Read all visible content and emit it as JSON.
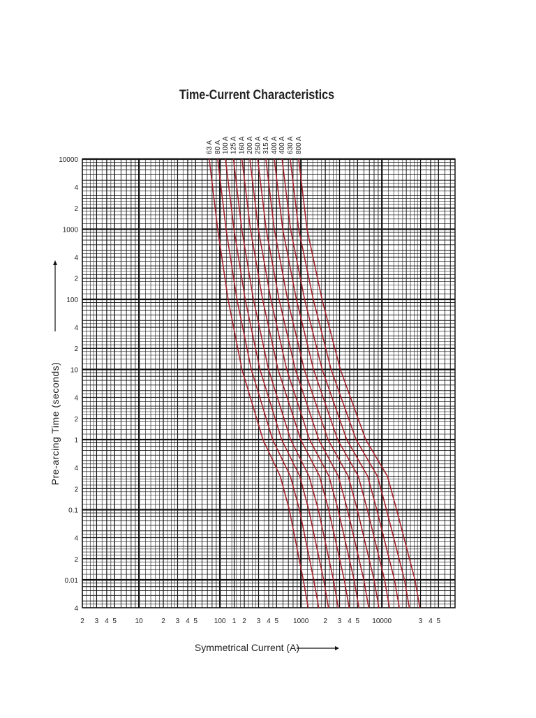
{
  "chart_data": {
    "type": "line",
    "title": "Time-Current Characteristics",
    "x_label": "Symmetrical Current (A)",
    "y_label": "Pre-arcing Time (seconds)",
    "x_log": true,
    "y_log": true,
    "grid": true,
    "xlim": [
      2,
      80000
    ],
    "ylim": [
      0.004,
      10000
    ],
    "xticks": [
      2,
      3,
      4,
      5,
      10,
      {
        "value": 20,
        "label": "2"
      },
      {
        "value": 30,
        "label": "3"
      },
      {
        "value": 40,
        "label": "4"
      },
      {
        "value": 50,
        "label": "5"
      },
      100,
      {
        "value": 150,
        "label": "1"
      },
      {
        "value": 200,
        "label": "2"
      },
      {
        "value": 300,
        "label": "3"
      },
      {
        "value": 400,
        "label": "4"
      },
      {
        "value": 500,
        "label": "5"
      },
      1000,
      {
        "value": 2000,
        "label": "2"
      },
      {
        "value": 3000,
        "label": "3"
      },
      {
        "value": 4000,
        "label": "4"
      },
      {
        "value": 5000,
        "label": "5"
      },
      10000,
      {
        "value": 30000,
        "label": "3"
      },
      {
        "value": 40000,
        "label": "4"
      },
      {
        "value": 50000,
        "label": "5"
      }
    ],
    "yticks": [
      10000,
      {
        "value": 4000,
        "label": "4"
      },
      {
        "value": 2000,
        "label": "2"
      },
      1000,
      {
        "value": 400,
        "label": "4"
      },
      {
        "value": 200,
        "label": "2"
      },
      100,
      {
        "value": 40,
        "label": "4"
      },
      {
        "value": 20,
        "label": "2"
      },
      10,
      {
        "value": 4,
        "label": "4"
      },
      2,
      1,
      {
        "value": 0.4,
        "label": "4"
      },
      {
        "value": 0.2,
        "label": "2"
      },
      0.1,
      {
        "value": 0.04,
        "label": "4"
      },
      {
        "value": 0.02,
        "label": "2"
      },
      0.01,
      {
        "value": 0.004,
        "label": "4"
      }
    ],
    "series": [
      {
        "name": "63 A",
        "color": "#a3222b",
        "x": [
          73.8,
          93.8,
          126,
          187,
          340,
          556,
          719,
          1070,
          1230
        ],
        "values": [
          10000,
          1000,
          100,
          10,
          1,
          0.3,
          0.1,
          0.01,
          0.004
        ]
      },
      {
        "name": "80 A",
        "color": "#a3222b",
        "x": [
          93.8,
          119,
          162,
          244,
          447,
          741,
          959,
          1440,
          1660
        ],
        "values": [
          10000,
          1000,
          100,
          10,
          1,
          0.3,
          0.1,
          0.01,
          0.004
        ]
      },
      {
        "name": "100 A",
        "color": "#a3222b",
        "x": [
          117,
          149,
          205,
          312,
          578,
          968,
          1250,
          1910,
          2190
        ],
        "values": [
          10000,
          1000,
          100,
          10,
          1,
          0.3,
          0.1,
          0.01,
          0.004
        ]
      },
      {
        "name": "125 A",
        "color": "#a3222b",
        "x": [
          147,
          186,
          259,
          398,
          746,
          1260,
          1640,
          2520,
          2890
        ],
        "values": [
          10000,
          1000,
          100,
          10,
          1,
          0.3,
          0.1,
          0.01,
          0.004
        ]
      },
      {
        "name": "160 A",
        "color": "#a3222b",
        "x": [
          187,
          238,
          336,
          522,
          993,
          1700,
          2200,
          3430,
          3940
        ],
        "values": [
          10000,
          1000,
          100,
          10,
          1,
          0.3,
          0.1,
          0.01,
          0.004
        ]
      },
      {
        "name": "200 A",
        "color": "#a3222b",
        "x": [
          234,
          298,
          425,
          668,
          1280,
          2220,
          2880,
          4530,
          5200
        ],
        "values": [
          10000,
          1000,
          100,
          10,
          1,
          0.3,
          0.1,
          0.01,
          0.004
        ]
      },
      {
        "name": "250 A",
        "color": "#a3222b",
        "x": [
          293,
          372,
          537,
          853,
          1660,
          2900,
          3760,
          5980,
          6870
        ],
        "values": [
          10000,
          1000,
          100,
          10,
          1,
          0.3,
          0.1,
          0.01,
          0.004
        ]
      },
      {
        "name": "315 A",
        "color": "#a3222b",
        "x": [
          369,
          469,
          684,
          1100,
          2160,
          3840,
          4970,
          8000,
          9180
        ],
        "values": [
          10000,
          1000,
          100,
          10,
          1,
          0.3,
          0.1,
          0.01,
          0.004
        ]
      },
      {
        "name": "400 A",
        "color": "#a3222b",
        "x": [
          469,
          596,
          879,
          1430,
          2840,
          5110,
          6610,
          10800,
          12400
        ],
        "values": [
          10000,
          1000,
          100,
          10,
          1,
          0.3,
          0.1,
          0.01,
          0.004
        ]
      },
      {
        "name": "400 A",
        "color": "#a3222b",
        "x": [
          586,
          745,
          1110,
          1830,
          3680,
          6680,
          8650,
          14300,
          16400
        ],
        "values": [
          10000,
          1000,
          100,
          10,
          1,
          0.3,
          0.1,
          0.01,
          0.004
        ]
      },
      {
        "name": "630 A",
        "color": "#a3222b",
        "x": [
          738,
          938,
          1420,
          2360,
          4800,
          8810,
          11400,
          19000,
          21800
        ],
        "values": [
          10000,
          1000,
          100,
          10,
          1,
          0.3,
          0.1,
          0.01,
          0.004
        ]
      },
      {
        "name": "800 A",
        "color": "#a3222b",
        "x": [
          938,
          1190,
          1820,
          3070,
          6310,
          11700,
          15200,
          25600,
          29400
        ],
        "values": [
          10000,
          1000,
          100,
          10,
          1,
          0.3,
          0.1,
          0.01,
          0.004
        ]
      }
    ]
  }
}
